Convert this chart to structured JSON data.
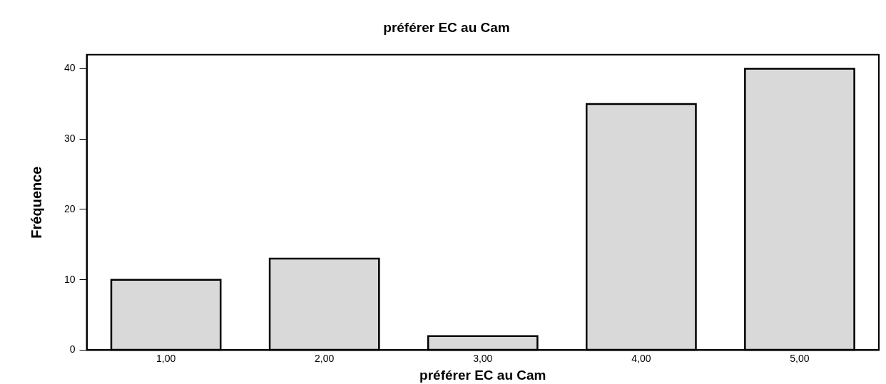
{
  "chart_data": {
    "type": "bar",
    "title": "préférer EC au Cam",
    "xlabel": "préférer EC au Cam",
    "ylabel": "Fréquence",
    "categories": [
      "1,00",
      "2,00",
      "3,00",
      "4,00",
      "5,00"
    ],
    "values": [
      10,
      13,
      2,
      35,
      40
    ],
    "color": "#d9d9d9",
    "ylim": [
      0,
      42
    ],
    "yticks": [
      0,
      10,
      20,
      30,
      40
    ],
    "grid": false,
    "legend": false
  }
}
